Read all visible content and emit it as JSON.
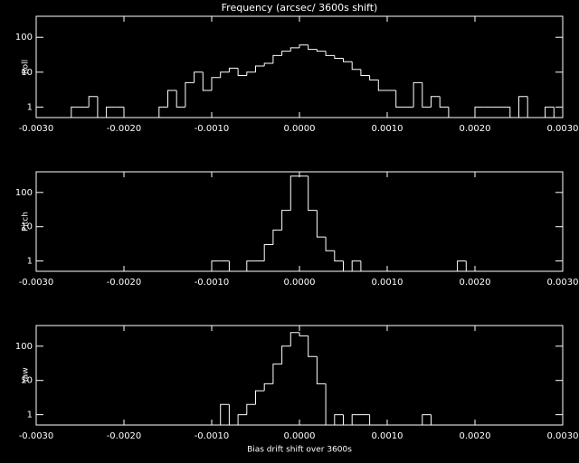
{
  "chart_data": [
    {
      "type": "histogram",
      "title": "Frequency (arcsec/ 3600s shift)",
      "ylabel": "Roll",
      "log_y": true,
      "color": "#ffffff",
      "bins": [
        -0.003,
        -0.0029,
        -0.0028,
        -0.0027,
        -0.0026,
        -0.0025,
        -0.0024,
        -0.0023,
        -0.0022,
        -0.0021,
        -0.002,
        -0.0019,
        -0.0018,
        -0.0017,
        -0.0016,
        -0.0015,
        -0.0014,
        -0.0013,
        -0.0012,
        -0.0011,
        -0.001,
        -0.0009,
        -0.0008,
        -0.0007,
        -0.0006,
        -0.0005,
        -0.0004,
        -0.0003,
        -0.0002,
        -0.0001,
        0,
        0.0001,
        0.0002,
        0.0003,
        0.0004,
        0.0005,
        0.0006,
        0.0007,
        0.0008,
        0.0009,
        0.001,
        0.0011,
        0.0012,
        0.0013,
        0.0014,
        0.0015,
        0.0016,
        0.0017,
        0.0018,
        0.0019,
        0.002,
        0.0021,
        0.0022,
        0.0023,
        0.0024,
        0.0025,
        0.0026,
        0.0027,
        0.0028,
        0.0029,
        0.003
      ],
      "values": [
        0,
        0,
        0,
        0,
        1,
        1,
        2,
        0,
        1,
        1,
        0,
        0,
        0,
        0,
        1,
        3,
        1,
        5,
        10,
        3,
        7,
        10,
        13,
        8,
        10,
        15,
        18,
        30,
        40,
        50,
        60,
        45,
        40,
        30,
        25,
        20,
        12,
        8,
        6,
        3,
        3,
        1,
        1,
        5,
        1,
        2,
        1,
        0,
        0,
        0,
        1,
        1,
        1,
        1,
        0,
        2,
        0,
        0,
        1,
        0
      ],
      "xlim": [
        -0.003,
        0.003
      ],
      "ylim": [
        0.5,
        400
      ],
      "yticks": [
        1,
        10,
        100
      ],
      "xticks": [
        {
          "value": -0.003,
          "label": "-0.0030"
        },
        {
          "value": -0.002,
          "label": "-0.0020"
        },
        {
          "value": -0.001,
          "label": "-0.0010"
        },
        {
          "value": 0,
          "label": "0.0000"
        },
        {
          "value": 0.001,
          "label": "0.0010"
        },
        {
          "value": 0.002,
          "label": "0.0020"
        },
        {
          "value": 0.003,
          "label": "0.0030"
        }
      ]
    },
    {
      "type": "histogram",
      "ylabel": "Pitch",
      "log_y": true,
      "color": "#ffffff",
      "bins": [
        -0.003,
        -0.0029,
        -0.0028,
        -0.0027,
        -0.0026,
        -0.0025,
        -0.0024,
        -0.0023,
        -0.0022,
        -0.0021,
        -0.002,
        -0.0019,
        -0.0018,
        -0.0017,
        -0.0016,
        -0.0015,
        -0.0014,
        -0.0013,
        -0.0012,
        -0.0011,
        -0.001,
        -0.0009,
        -0.0008,
        -0.0007,
        -0.0006,
        -0.0005,
        -0.0004,
        -0.0003,
        -0.0002,
        -0.0001,
        0,
        0.0001,
        0.0002,
        0.0003,
        0.0004,
        0.0005,
        0.0006,
        0.0007,
        0.0008,
        0.0009,
        0.001,
        0.0011,
        0.0012,
        0.0013,
        0.0014,
        0.0015,
        0.0016,
        0.0017,
        0.0018,
        0.0019,
        0.002,
        0.0021,
        0.0022,
        0.0023,
        0.0024,
        0.0025,
        0.0026,
        0.0027,
        0.0028,
        0.0029,
        0.003
      ],
      "values": [
        0,
        0,
        0,
        0,
        0,
        0,
        0,
        0,
        0,
        0,
        0,
        0,
        0,
        0,
        0,
        0,
        0,
        0,
        0,
        0,
        1,
        1,
        0,
        0,
        1,
        1,
        3,
        8,
        30,
        300,
        300,
        30,
        5,
        2,
        1,
        0,
        1,
        0,
        0,
        0,
        0,
        0,
        0,
        0,
        0,
        0,
        0,
        0,
        1,
        0,
        0,
        0,
        0,
        0,
        0,
        0,
        0,
        0,
        0,
        0
      ],
      "xlim": [
        -0.003,
        0.003
      ],
      "ylim": [
        0.5,
        400
      ],
      "yticks": [
        1,
        10,
        100
      ],
      "xticks": [
        {
          "value": -0.003,
          "label": "-0.0030"
        },
        {
          "value": -0.002,
          "label": "-0.0020"
        },
        {
          "value": -0.001,
          "label": "-0.0010"
        },
        {
          "value": 0,
          "label": "0.0000"
        },
        {
          "value": 0.001,
          "label": "0.0010"
        },
        {
          "value": 0.002,
          "label": "0.0020"
        },
        {
          "value": 0.003,
          "label": "0.0030"
        }
      ]
    },
    {
      "type": "histogram",
      "ylabel": "Yaw",
      "xlabel": "Bias drift shift over 3600s",
      "log_y": true,
      "color": "#ffffff",
      "bins": [
        -0.003,
        -0.0029,
        -0.0028,
        -0.0027,
        -0.0026,
        -0.0025,
        -0.0024,
        -0.0023,
        -0.0022,
        -0.0021,
        -0.002,
        -0.0019,
        -0.0018,
        -0.0017,
        -0.0016,
        -0.0015,
        -0.0014,
        -0.0013,
        -0.0012,
        -0.0011,
        -0.001,
        -0.0009,
        -0.0008,
        -0.0007,
        -0.0006,
        -0.0005,
        -0.0004,
        -0.0003,
        -0.0002,
        -0.0001,
        0,
        0.0001,
        0.0002,
        0.0003,
        0.0004,
        0.0005,
        0.0006,
        0.0007,
        0.0008,
        0.0009,
        0.001,
        0.0011,
        0.0012,
        0.0013,
        0.0014,
        0.0015,
        0.0016,
        0.0017,
        0.0018,
        0.0019,
        0.002,
        0.0021,
        0.0022,
        0.0023,
        0.0024,
        0.0025,
        0.0026,
        0.0027,
        0.0028,
        0.0029,
        0.003
      ],
      "values": [
        0,
        0,
        0,
        0,
        0,
        0,
        0,
        0,
        0,
        0,
        0,
        0,
        0,
        0,
        0,
        0,
        0,
        0,
        0,
        0,
        0,
        2,
        0,
        1,
        2,
        5,
        8,
        30,
        100,
        250,
        200,
        50,
        8,
        0,
        1,
        0,
        1,
        1,
        0,
        0,
        0,
        0,
        0,
        0,
        1,
        0,
        0,
        0,
        0,
        0,
        0,
        0,
        0,
        0,
        0,
        0,
        0,
        0,
        0,
        0
      ],
      "xlim": [
        -0.003,
        0.003
      ],
      "ylim": [
        0.5,
        400
      ],
      "yticks": [
        1,
        10,
        100
      ],
      "xticks": [
        {
          "value": -0.003,
          "label": "-0.0030"
        },
        {
          "value": -0.002,
          "label": "-0.0020"
        },
        {
          "value": -0.001,
          "label": "-0.0010"
        },
        {
          "value": 0,
          "label": "0.0000"
        },
        {
          "value": 0.001,
          "label": "0.0010"
        },
        {
          "value": 0.002,
          "label": "0.0020"
        },
        {
          "value": 0.003,
          "label": "0.0030"
        }
      ]
    }
  ]
}
